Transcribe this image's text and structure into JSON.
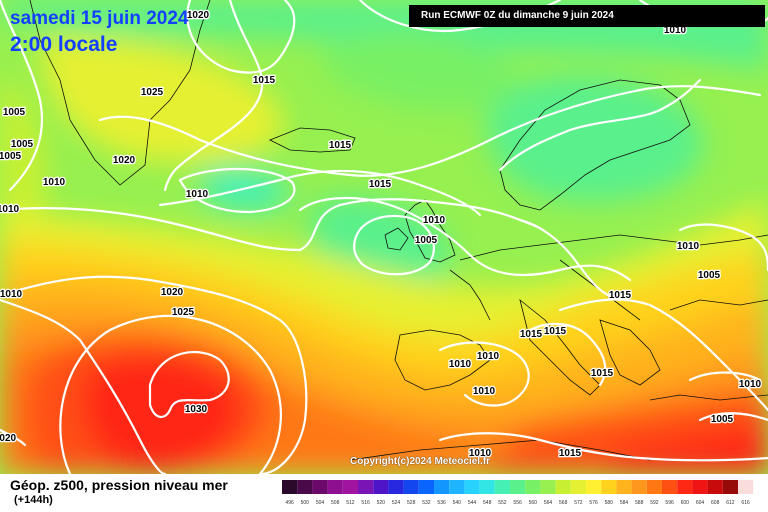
{
  "header": {
    "date": "samedi 15 juin 2024",
    "time": "2:00 locale",
    "run": "Run ECMWF 0Z du dimanche 9 juin 2024"
  },
  "copyright": "Copyright(c)2024 Meteociel.fr",
  "footer": {
    "title": "Géop. z500, pression niveau mer",
    "subtitle": "(+144h)"
  },
  "scale": {
    "values": [
      "496",
      "500",
      "504",
      "508",
      "512",
      "516",
      "520",
      "524",
      "528",
      "532",
      "536",
      "540",
      "544",
      "548",
      "552",
      "556",
      "560",
      "564",
      "568",
      "572",
      "576",
      "580",
      "584",
      "588",
      "592",
      "596",
      "600",
      "604",
      "608",
      "612",
      "616"
    ],
    "colors": [
      "#2a0a2a",
      "#4a0a4a",
      "#6c0a6c",
      "#8e1090",
      "#a014a0",
      "#7a14b4",
      "#5014c8",
      "#2828e0",
      "#1446f0",
      "#0a64ff",
      "#1496ff",
      "#1eb4ff",
      "#28d2ff",
      "#32e6e6",
      "#46f0b4",
      "#5af08c",
      "#78f064",
      "#96f050",
      "#c8f032",
      "#e6f032",
      "#fff032",
      "#ffd21e",
      "#ffb41e",
      "#ff961e",
      "#ff7814",
      "#ff5014",
      "#ff2814",
      "#f01414",
      "#c80a0a",
      "#960a0a",
      "#fadcdc"
    ]
  },
  "isobars": [
    {
      "label": "1020",
      "lon": 198,
      "lat": 14
    },
    {
      "label": "1010",
      "lon": 675,
      "lat": 29
    },
    {
      "label": "1015",
      "lon": 264,
      "lat": 79
    },
    {
      "label": "1025",
      "lon": 152,
      "lat": 91
    },
    {
      "label": "1005",
      "lon": 14,
      "lat": 111
    },
    {
      "label": "1005",
      "lon": 22,
      "lat": 143
    },
    {
      "label": "1005",
      "lon": 10,
      "lat": 155
    },
    {
      "label": "1015",
      "lon": 340,
      "lat": 144
    },
    {
      "label": "1020",
      "lon": 124,
      "lat": 159
    },
    {
      "label": "1010",
      "lon": 54,
      "lat": 181
    },
    {
      "label": "1015",
      "lon": 380,
      "lat": 183
    },
    {
      "label": "1010",
      "lon": 197,
      "lat": 193
    },
    {
      "label": "1010",
      "lon": 8,
      "lat": 208
    },
    {
      "label": "1010",
      "lon": 434,
      "lat": 219
    },
    {
      "label": "1005",
      "lon": 426,
      "lat": 239
    },
    {
      "label": "1010",
      "lon": 688,
      "lat": 245
    },
    {
      "label": "1005",
      "lon": 709,
      "lat": 274
    },
    {
      "label": "1010",
      "lon": 11,
      "lat": 293
    },
    {
      "label": "1020",
      "lon": 172,
      "lat": 291
    },
    {
      "label": "1015",
      "lon": 620,
      "lat": 294
    },
    {
      "label": "1025",
      "lon": 183,
      "lat": 311
    },
    {
      "label": "1015",
      "lon": 555,
      "lat": 330
    },
    {
      "label": "1015",
      "lon": 531,
      "lat": 333
    },
    {
      "label": "1010",
      "lon": 488,
      "lat": 355
    },
    {
      "label": "1010",
      "lon": 460,
      "lat": 363
    },
    {
      "label": "1015",
      "lon": 602,
      "lat": 372
    },
    {
      "label": "1010",
      "lon": 484,
      "lat": 390
    },
    {
      "label": "1010",
      "lon": 750,
      "lat": 383
    },
    {
      "label": "1030",
      "lon": 196,
      "lat": 408
    },
    {
      "label": "1005",
      "lon": 722,
      "lat": 418
    },
    {
      "label": "1020",
      "lon": 5,
      "lat": 437
    },
    {
      "label": "1010",
      "lon": 480,
      "lat": 452
    },
    {
      "label": "1015",
      "lon": 570,
      "lat": 452
    }
  ]
}
